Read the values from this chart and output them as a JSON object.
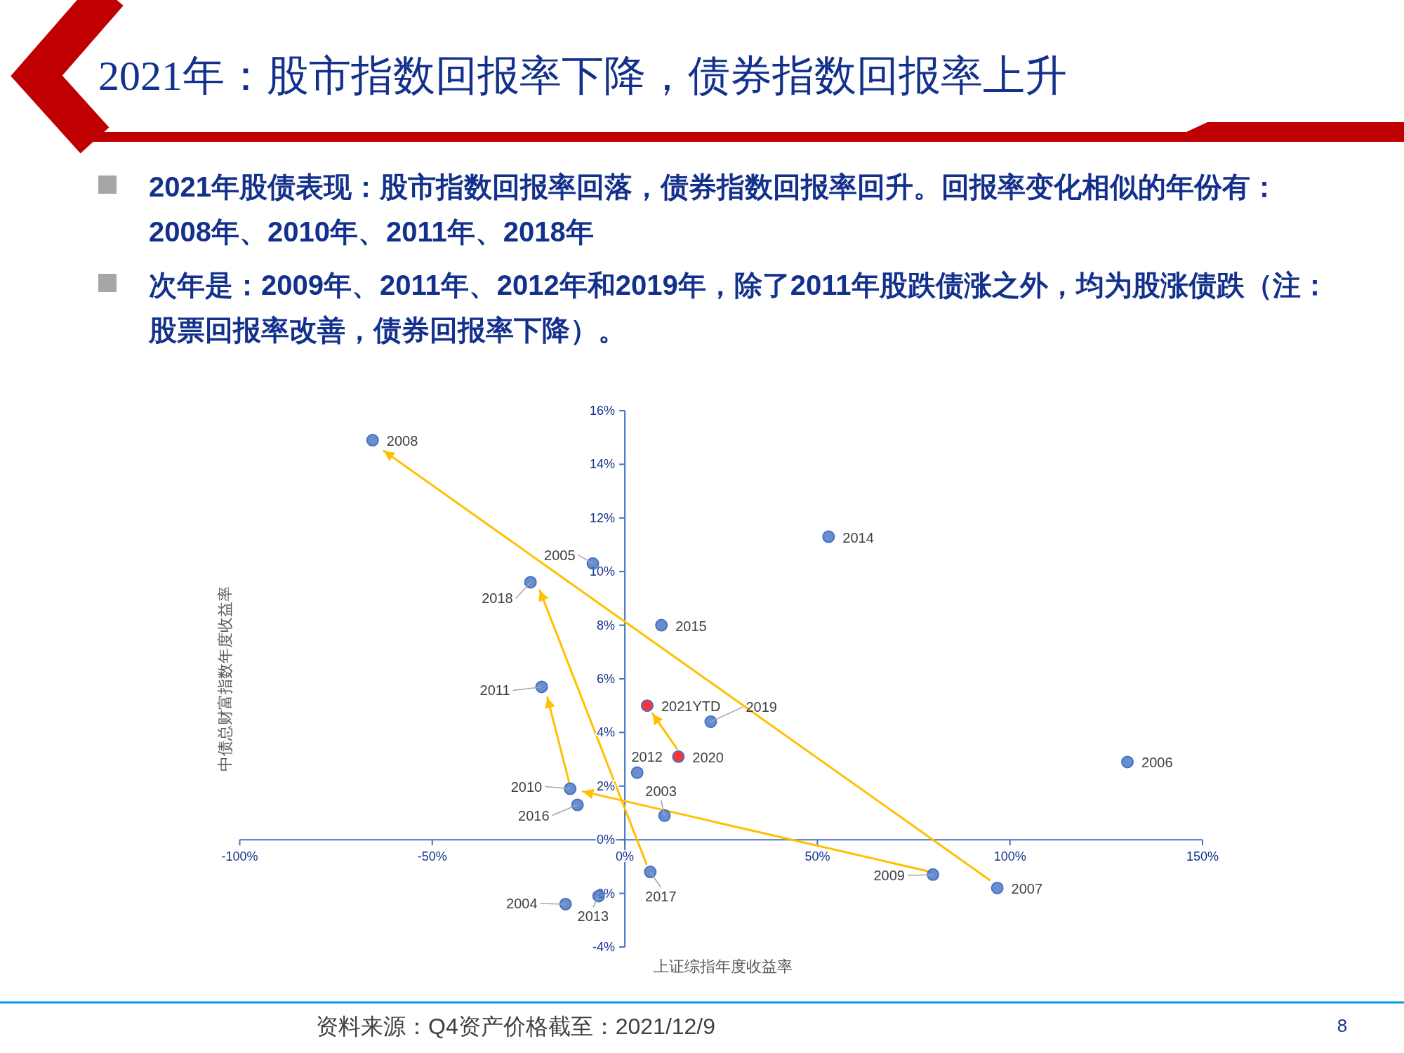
{
  "chart_data": {
    "type": "scatter",
    "title": "2021年：股市指数回报率下降，债券指数回报率上升",
    "subtitle": "2021年股债表现：股市指数回报率回落，债券指数回报率回升。回报率变化相似的年份有：2008年、2010年、2011年、2018年",
    "annotations": [
      "次年是：2009年、2011年、2012年和2019年，除了2011年股跌债涨之外，均为股涨债跌（注：股票回报率改善，债券回报率下降）。",
      "资料来源：Q4资产价格截至：2021/12/9",
      "8",
      {
        "text": "2003",
        "x": 10.3,
        "y": 0.9
      },
      {
        "text": "2004",
        "x": -15.4,
        "y": -2.4
      },
      {
        "text": "2005",
        "x": -8.3,
        "y": 10.3
      },
      {
        "text": "2006",
        "x": 130.5,
        "y": 2.9
      },
      {
        "text": "2007",
        "x": 96.7,
        "y": -1.8
      },
      {
        "text": "2008",
        "x": -65.5,
        "y": 14.9
      },
      {
        "text": "2009",
        "x": 80.0,
        "y": -1.3
      },
      {
        "text": "2010",
        "x": -14.2,
        "y": 1.9
      },
      {
        "text": "2011",
        "x": -21.6,
        "y": 5.7
      },
      {
        "text": "2012",
        "x": 3.2,
        "y": 2.5
      },
      {
        "text": "2013",
        "x": -6.8,
        "y": -2.1
      },
      {
        "text": "2014",
        "x": 52.9,
        "y": 11.3
      },
      {
        "text": "2015",
        "x": 9.5,
        "y": 8.0
      },
      {
        "text": "2016",
        "x": -12.3,
        "y": 1.3
      },
      {
        "text": "2017",
        "x": 6.6,
        "y": -1.2
      },
      {
        "text": "2018",
        "x": -24.5,
        "y": 9.6
      },
      {
        "text": "2019",
        "x": 22.3,
        "y": 4.4
      },
      {
        "text": "2020",
        "x": 13.9,
        "y": 3.1
      },
      {
        "text": "2021YTD",
        "x": 5.8,
        "y": 5.0
      }
    ],
    "xlabel": "上证综指年度收益率",
    "ylabel": "中债总财富指数年度收益率",
    "xlim": [
      -100,
      150
    ],
    "ylim": [
      -4,
      16
    ],
    "xticks": [
      {
        "value": -100,
        "label": "-100%"
      },
      {
        "value": -50,
        "label": "-50%"
      },
      {
        "value": 0,
        "label": "0%"
      },
      {
        "value": 50,
        "label": "50%"
      },
      {
        "value": 100,
        "label": "100%"
      },
      {
        "value": 150,
        "label": "150%"
      }
    ],
    "yticks": [
      {
        "value": -4,
        "label": "-4%"
      },
      {
        "value": -2,
        "label": "-2%"
      },
      {
        "value": 0,
        "label": "0%"
      },
      {
        "value": 2,
        "label": "2%"
      },
      {
        "value": 4,
        "label": "4%"
      },
      {
        "value": 6,
        "label": "6%"
      },
      {
        "value": 8,
        "label": "8%"
      },
      {
        "value": 10,
        "label": "10%"
      },
      {
        "value": 12,
        "label": "12%"
      },
      {
        "value": 14,
        "label": "14%"
      },
      {
        "value": 16,
        "label": "16%"
      }
    ],
    "series": [
      {
        "marker": "circle",
        "color": "#4472c4",
        "x": [
          10.3,
          -15.4,
          -8.3,
          130.5,
          96.7,
          -65.5,
          80.0,
          -14.2,
          -21.6,
          3.2,
          -6.8,
          52.9,
          9.5,
          -12.3,
          6.6,
          -24.5,
          22.3,
          13.9,
          5.8
        ],
        "values": [
          0.9,
          -2.4,
          10.3,
          2.9,
          -1.8,
          14.9,
          -1.3,
          1.9,
          5.7,
          2.5,
          -2.1,
          11.3,
          8.0,
          1.3,
          -1.2,
          9.6,
          4.4,
          3.1,
          5.0
        ],
        "colors": [
          "#4472c4",
          "#4472c4",
          "#4472c4",
          "#4472c4",
          "#4472c4",
          "#4472c4",
          "#4472c4",
          "#4472c4",
          "#4472c4",
          "#4472c4",
          "#4472c4",
          "#4472c4",
          "#4472c4",
          "#4472c4",
          "#4472c4",
          "#4472c4",
          "#4472c4",
          "#ff0000",
          "#ff0000"
        ]
      },
      {
        "type": "line",
        "color": "#ffc000",
        "x": [
          94.7,
          -62.6
        ],
        "values": [
          -1.5,
          14.5
        ]
      },
      {
        "type": "line",
        "color": "#ffc000",
        "x": [
          79.4,
          -10.9
        ],
        "values": [
          -1.2,
          1.8
        ]
      },
      {
        "type": "line",
        "color": "#ffc000",
        "x": [
          -14.4,
          -20.1
        ],
        "values": [
          2.1,
          5.3
        ]
      },
      {
        "type": "line",
        "color": "#ffc000",
        "x": [
          5.6,
          -22.1
        ],
        "values": [
          -0.9,
          9.3
        ]
      },
      {
        "type": "line",
        "color": "#ffc000",
        "x": [
          13.5,
          7.2
        ],
        "values": [
          3.4,
          4.7
        ]
      }
    ]
  }
}
